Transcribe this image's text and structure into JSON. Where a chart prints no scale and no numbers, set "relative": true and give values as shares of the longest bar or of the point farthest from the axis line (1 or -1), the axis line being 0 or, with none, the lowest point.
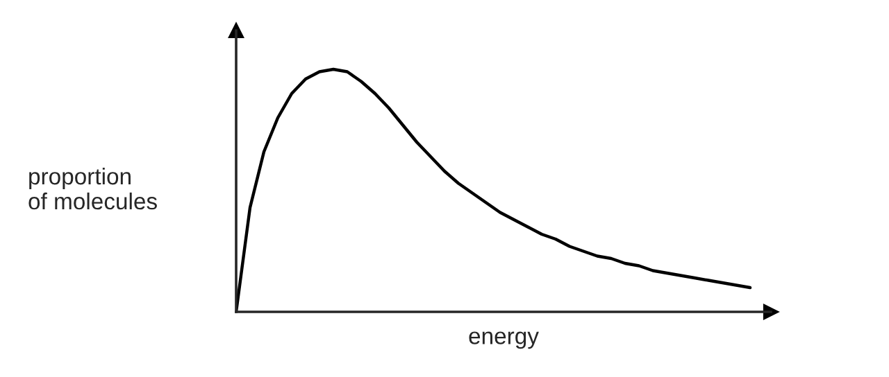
{
  "chart_data": {
    "type": "line",
    "relative": true,
    "xlabel": "energy",
    "ylabel": "proportion\nof molecules",
    "categories": [
      null,
      null,
      null,
      null,
      null,
      null,
      null,
      null,
      null,
      null,
      null,
      null,
      null,
      null,
      null,
      null,
      null,
      null,
      null,
      null,
      null,
      null,
      null,
      null,
      null,
      null,
      null,
      null,
      null,
      null,
      null,
      null,
      null,
      null,
      null,
      null,
      null,
      null
    ],
    "series": [
      {
        "color": "#000000",
        "values": [
          0,
          0.43,
          0.66,
          0.8,
          0.9,
          0.96,
          0.99,
          1,
          0.99,
          0.95,
          0.9,
          0.84,
          0.77,
          0.7,
          0.64,
          0.58,
          0.53,
          0.49,
          0.45,
          0.41,
          0.38,
          0.35,
          0.32,
          0.3,
          0.27,
          0.25,
          0.23,
          0.22,
          0.2,
          0.19,
          0.17,
          0.16,
          0.15,
          0.14,
          0.13,
          0.12,
          0.11,
          0.1
        ]
      }
    ],
    "legend": false,
    "marker": "none",
    "line_style": "solid",
    "tick_labels": false
  }
}
